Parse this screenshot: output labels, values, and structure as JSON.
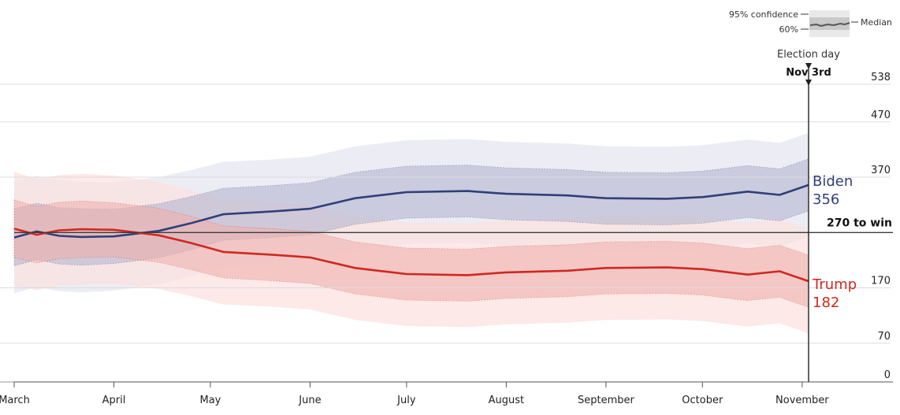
{
  "chart_data": {
    "type": "area",
    "x_axis": {
      "start": "2020-03-01",
      "end": "2020-11-03",
      "tick_labels": [
        {
          "date": "2020-03-01",
          "label": "March"
        },
        {
          "date": "2020-04-01",
          "label": "April"
        },
        {
          "date": "2020-05-01",
          "label": "May"
        },
        {
          "date": "2020-06-01",
          "label": "June"
        },
        {
          "date": "2020-07-01",
          "label": "July"
        },
        {
          "date": "2020-08-01",
          "label": "August"
        },
        {
          "date": "2020-09-01",
          "label": "September"
        },
        {
          "date": "2020-10-01",
          "label": "October"
        },
        {
          "date": "2020-11-01",
          "label": "November"
        }
      ]
    },
    "y_axis": {
      "ylim": [
        0,
        538
      ],
      "tick_labels": [
        0,
        70,
        170,
        370,
        470,
        538
      ]
    },
    "threshold": {
      "value": 270,
      "label": "270 to win"
    },
    "election_day": {
      "date": "2020-11-03",
      "label": "Election day",
      "sublabel": "Nov 3rd"
    },
    "legend": {
      "ci95": "95% confidence",
      "ci60": "60%",
      "median": "Median"
    },
    "series": [
      {
        "name": "Biden",
        "final_value": "356",
        "color": "#2f3f7a",
        "band60_color": "#b4b4cf",
        "band95_color": "#e6e7f0",
        "points": [
          {
            "date": "2020-03-01",
            "median": 261,
            "lo60": 210,
            "hi60": 313,
            "lo95": 160,
            "hi95": 364
          },
          {
            "date": "2020-03-08",
            "median": 272,
            "lo60": 221,
            "hi60": 323,
            "lo95": 172,
            "hi95": 372
          },
          {
            "date": "2020-03-15",
            "median": 264,
            "lo60": 213,
            "hi60": 315,
            "lo95": 164,
            "hi95": 365
          },
          {
            "date": "2020-03-22",
            "median": 262,
            "lo60": 211,
            "hi60": 313,
            "lo95": 162,
            "hi95": 362
          },
          {
            "date": "2020-04-01",
            "median": 263,
            "lo60": 214,
            "hi60": 312,
            "lo95": 165,
            "hi95": 361
          },
          {
            "date": "2020-04-15",
            "median": 273,
            "lo60": 224,
            "hi60": 322,
            "lo95": 176,
            "hi95": 370
          },
          {
            "date": "2020-04-25",
            "median": 287,
            "lo60": 239,
            "hi60": 335,
            "lo95": 191,
            "hi95": 383
          },
          {
            "date": "2020-05-05",
            "median": 303,
            "lo60": 256,
            "hi60": 350,
            "lo95": 208,
            "hi95": 398
          },
          {
            "date": "2020-05-20",
            "median": 308,
            "lo60": 261,
            "hi60": 355,
            "lo95": 214,
            "hi95": 402
          },
          {
            "date": "2020-06-01",
            "median": 313,
            "lo60": 266,
            "hi60": 360,
            "lo95": 219,
            "hi95": 407
          },
          {
            "date": "2020-06-15",
            "median": 332,
            "lo60": 285,
            "hi60": 379,
            "lo95": 238,
            "hi95": 426
          },
          {
            "date": "2020-07-01",
            "median": 343,
            "lo60": 296,
            "hi60": 390,
            "lo95": 249,
            "hi95": 437
          },
          {
            "date": "2020-07-20",
            "median": 345,
            "lo60": 298,
            "hi60": 392,
            "lo95": 251,
            "hi95": 439
          },
          {
            "date": "2020-08-01",
            "median": 340,
            "lo60": 293,
            "hi60": 387,
            "lo95": 246,
            "hi95": 434
          },
          {
            "date": "2020-08-20",
            "median": 337,
            "lo60": 290,
            "hi60": 384,
            "lo95": 243,
            "hi95": 431
          },
          {
            "date": "2020-09-01",
            "median": 332,
            "lo60": 285,
            "hi60": 379,
            "lo95": 238,
            "hi95": 426
          },
          {
            "date": "2020-09-20",
            "median": 331,
            "lo60": 284,
            "hi60": 378,
            "lo95": 237,
            "hi95": 425
          },
          {
            "date": "2020-10-01",
            "median": 334,
            "lo60": 287,
            "hi60": 381,
            "lo95": 240,
            "hi95": 428
          },
          {
            "date": "2020-10-15",
            "median": 344,
            "lo60": 297,
            "hi60": 391,
            "lo95": 250,
            "hi95": 438
          },
          {
            "date": "2020-10-25",
            "median": 338,
            "lo60": 291,
            "hi60": 385,
            "lo95": 244,
            "hi95": 432
          },
          {
            "date": "2020-11-03",
            "median": 356,
            "lo60": 309,
            "hi60": 403,
            "lo95": 262,
            "hi95": 450
          }
        ]
      },
      {
        "name": "Trump",
        "final_value": "182",
        "color": "#d0281f",
        "band60_color": "#efb0ad",
        "band95_color": "#fbe1e0",
        "points": [
          {
            "date": "2020-03-01",
            "median": 277,
            "lo60": 225,
            "hi60": 329,
            "lo95": 174,
            "hi95": 380
          },
          {
            "date": "2020-03-08",
            "median": 266,
            "lo60": 215,
            "hi60": 317,
            "lo95": 166,
            "hi95": 366
          },
          {
            "date": "2020-03-15",
            "median": 274,
            "lo60": 223,
            "hi60": 325,
            "lo95": 174,
            "hi95": 374
          },
          {
            "date": "2020-03-22",
            "median": 276,
            "lo60": 225,
            "hi60": 327,
            "lo95": 176,
            "hi95": 376
          },
          {
            "date": "2020-04-01",
            "median": 275,
            "lo60": 226,
            "hi60": 324,
            "lo95": 177,
            "hi95": 373
          },
          {
            "date": "2020-04-15",
            "median": 265,
            "lo60": 216,
            "hi60": 314,
            "lo95": 168,
            "hi95": 362
          },
          {
            "date": "2020-04-25",
            "median": 251,
            "lo60": 203,
            "hi60": 299,
            "lo95": 155,
            "hi95": 347
          },
          {
            "date": "2020-05-05",
            "median": 235,
            "lo60": 188,
            "hi60": 282,
            "lo95": 140,
            "hi95": 330
          },
          {
            "date": "2020-05-20",
            "median": 230,
            "lo60": 183,
            "hi60": 277,
            "lo95": 136,
            "hi95": 324
          },
          {
            "date": "2020-06-01",
            "median": 225,
            "lo60": 178,
            "hi60": 272,
            "lo95": 131,
            "hi95": 319
          },
          {
            "date": "2020-06-15",
            "median": 206,
            "lo60": 159,
            "hi60": 253,
            "lo95": 112,
            "hi95": 300
          },
          {
            "date": "2020-07-01",
            "median": 195,
            "lo60": 148,
            "hi60": 242,
            "lo95": 101,
            "hi95": 289
          },
          {
            "date": "2020-07-20",
            "median": 193,
            "lo60": 146,
            "hi60": 240,
            "lo95": 99,
            "hi95": 287
          },
          {
            "date": "2020-08-01",
            "median": 198,
            "lo60": 151,
            "hi60": 245,
            "lo95": 104,
            "hi95": 292
          },
          {
            "date": "2020-08-20",
            "median": 201,
            "lo60": 154,
            "hi60": 248,
            "lo95": 107,
            "hi95": 295
          },
          {
            "date": "2020-09-01",
            "median": 206,
            "lo60": 159,
            "hi60": 253,
            "lo95": 112,
            "hi95": 300
          },
          {
            "date": "2020-09-20",
            "median": 207,
            "lo60": 160,
            "hi60": 254,
            "lo95": 113,
            "hi95": 301
          },
          {
            "date": "2020-10-01",
            "median": 204,
            "lo60": 157,
            "hi60": 251,
            "lo95": 110,
            "hi95": 298
          },
          {
            "date": "2020-10-15",
            "median": 194,
            "lo60": 147,
            "hi60": 241,
            "lo95": 100,
            "hi95": 288
          },
          {
            "date": "2020-10-25",
            "median": 200,
            "lo60": 153,
            "hi60": 247,
            "lo95": 106,
            "hi95": 294
          },
          {
            "date": "2020-11-03",
            "median": 182,
            "lo60": 135,
            "hi60": 229,
            "lo95": 88,
            "hi95": 276
          }
        ]
      }
    ]
  }
}
